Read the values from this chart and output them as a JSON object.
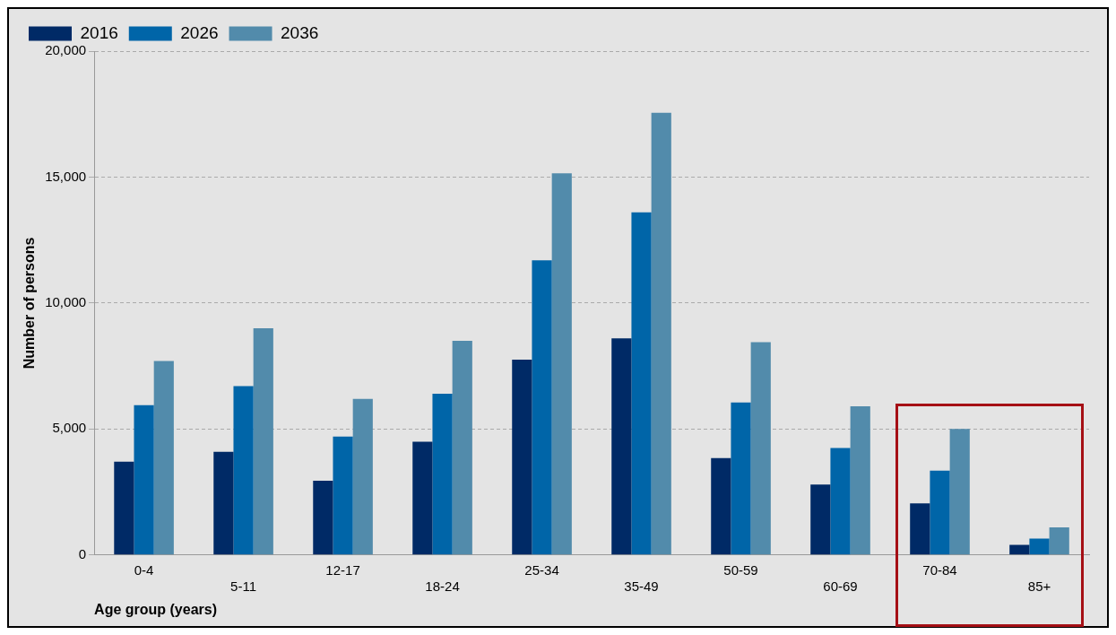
{
  "chart_data": {
    "type": "bar",
    "xlabel": "Age group (years)",
    "ylabel": "Number of persons",
    "categories": [
      "0-4",
      "5-11",
      "12-17",
      "18-24",
      "25-34",
      "35-49",
      "50-59",
      "60-69",
      "70-84",
      "85+"
    ],
    "series": [
      {
        "name": "2016",
        "color": "#002a66",
        "values": [
          3700,
          4100,
          2950,
          4500,
          7750,
          8600,
          3850,
          2800,
          2050,
          400
        ]
      },
      {
        "name": "2026",
        "color": "#0065a8",
        "values": [
          5950,
          6700,
          4700,
          6400,
          11700,
          13600,
          6050,
          4250,
          3350,
          650
        ]
      },
      {
        "name": "2036",
        "color": "#528bab",
        "values": [
          7700,
          9000,
          6200,
          8500,
          15150,
          17550,
          8450,
          5900,
          5000,
          1100
        ]
      }
    ],
    "ylim": [
      0,
      20000
    ],
    "yticks": [
      {
        "value": 0,
        "label": "0"
      },
      {
        "value": 5000,
        "label": "5,000"
      },
      {
        "value": 10000,
        "label": "10,000"
      },
      {
        "value": 15000,
        "label": "15,000"
      },
      {
        "value": 20000,
        "label": "20,000"
      }
    ],
    "grid": "y",
    "legend": "top left"
  }
}
